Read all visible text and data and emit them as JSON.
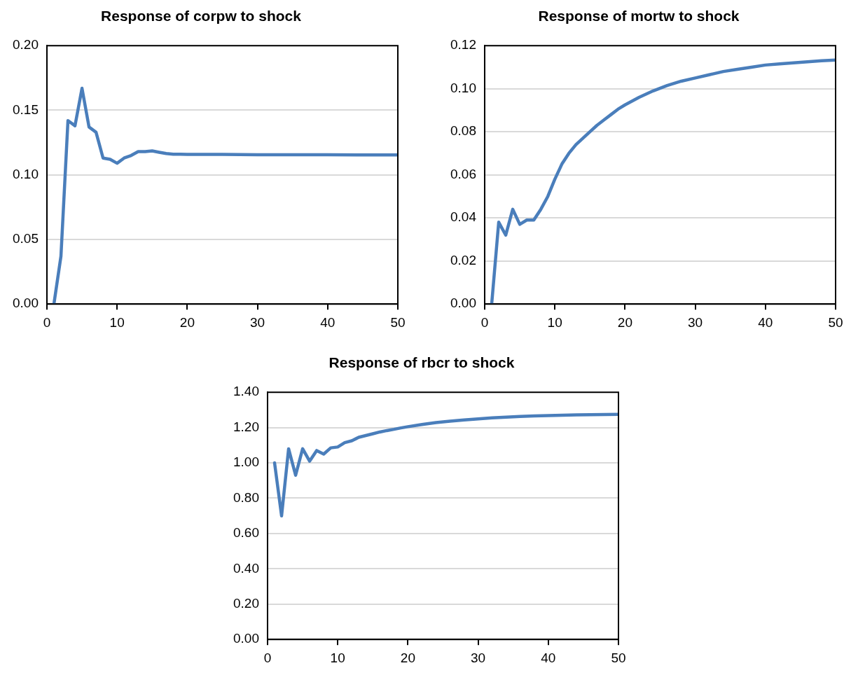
{
  "chart_data": [
    {
      "type": "line",
      "title": "Response of corpw to shock",
      "grid": "y",
      "xlim": [
        0,
        50
      ],
      "xticks": [
        0,
        10,
        20,
        30,
        40,
        50
      ],
      "ylim": [
        0,
        0.2
      ],
      "yticks": [
        {
          "value": 0,
          "label": "0.00"
        },
        {
          "value": 0.05,
          "label": "0.05"
        },
        {
          "value": 0.1,
          "label": "0.10"
        },
        {
          "value": 0.15,
          "label": "0.15"
        },
        {
          "value": 0.2,
          "label": "0.20"
        }
      ],
      "series": [
        {
          "color": "#4a7ebb",
          "x": [
            1,
            2,
            3,
            4,
            5,
            6,
            7,
            8,
            9,
            10,
            11,
            12,
            13,
            14,
            15,
            16,
            17,
            18,
            19,
            20,
            25,
            30,
            35,
            40,
            45,
            50
          ],
          "values": [
            0,
            0.037,
            0.142,
            0.138,
            0.167,
            0.137,
            0.133,
            0.113,
            0.112,
            0.109,
            0.113,
            0.115,
            0.118,
            0.118,
            0.1185,
            0.1175,
            0.1165,
            0.116,
            0.116,
            0.1158,
            0.1158,
            0.1156,
            0.1155,
            0.1155,
            0.1154,
            0.1154
          ]
        }
      ]
    },
    {
      "type": "line",
      "title": "Response of mortw to shock",
      "grid": "y",
      "xlim": [
        0,
        50
      ],
      "xticks": [
        0,
        10,
        20,
        30,
        40,
        50
      ],
      "ylim": [
        0,
        0.12
      ],
      "yticks": [
        {
          "value": 0,
          "label": "0.00"
        },
        {
          "value": 0.02,
          "label": "0.02"
        },
        {
          "value": 0.04,
          "label": "0.04"
        },
        {
          "value": 0.06,
          "label": "0.06"
        },
        {
          "value": 0.08,
          "label": "0.08"
        },
        {
          "value": 0.1,
          "label": "0.10"
        },
        {
          "value": 0.12,
          "label": "0.12"
        }
      ],
      "series": [
        {
          "color": "#4a7ebb",
          "x": [
            1,
            2,
            3,
            4,
            5,
            6,
            7,
            8,
            9,
            10,
            11,
            12,
            13,
            14,
            15,
            16,
            17,
            18,
            19,
            20,
            22,
            24,
            26,
            28,
            30,
            32,
            34,
            36,
            38,
            40,
            42,
            44,
            46,
            48,
            50
          ],
          "values": [
            0,
            0.038,
            0.032,
            0.044,
            0.037,
            0.039,
            0.039,
            0.044,
            0.05,
            0.058,
            0.065,
            0.07,
            0.074,
            0.077,
            0.08,
            0.083,
            0.0855,
            0.088,
            0.0905,
            0.0925,
            0.096,
            0.099,
            0.1015,
            0.1035,
            0.105,
            0.1065,
            0.108,
            0.109,
            0.11,
            0.111,
            0.1115,
            0.112,
            0.1125,
            0.113,
            0.1133
          ]
        }
      ]
    },
    {
      "type": "line",
      "title": "Response of rbcr to shock",
      "grid": "y",
      "xlim": [
        0,
        50
      ],
      "xticks": [
        0,
        10,
        20,
        30,
        40,
        50
      ],
      "ylim": [
        0,
        1.4
      ],
      "yticks": [
        {
          "value": 0,
          "label": "0.00"
        },
        {
          "value": 0.2,
          "label": "0.20"
        },
        {
          "value": 0.4,
          "label": "0.40"
        },
        {
          "value": 0.6,
          "label": "0.60"
        },
        {
          "value": 0.8,
          "label": "0.80"
        },
        {
          "value": 1,
          "label": "1.00"
        },
        {
          "value": 1.2,
          "label": "1.20"
        },
        {
          "value": 1.4,
          "label": "1.40"
        }
      ],
      "series": [
        {
          "color": "#4a7ebb",
          "x": [
            1,
            2,
            3,
            4,
            5,
            6,
            7,
            8,
            9,
            10,
            11,
            12,
            13,
            14,
            15,
            16,
            17,
            18,
            19,
            20,
            22,
            24,
            26,
            28,
            30,
            32,
            34,
            36,
            38,
            40,
            42,
            44,
            46,
            48,
            50
          ],
          "values": [
            1,
            0.7,
            1.08,
            0.93,
            1.08,
            1.01,
            1.07,
            1.05,
            1.085,
            1.09,
            1.115,
            1.125,
            1.145,
            1.155,
            1.165,
            1.175,
            1.183,
            1.19,
            1.198,
            1.205,
            1.217,
            1.228,
            1.236,
            1.243,
            1.249,
            1.255,
            1.259,
            1.263,
            1.266,
            1.268,
            1.27,
            1.272,
            1.273,
            1.274,
            1.275
          ]
        }
      ]
    }
  ]
}
